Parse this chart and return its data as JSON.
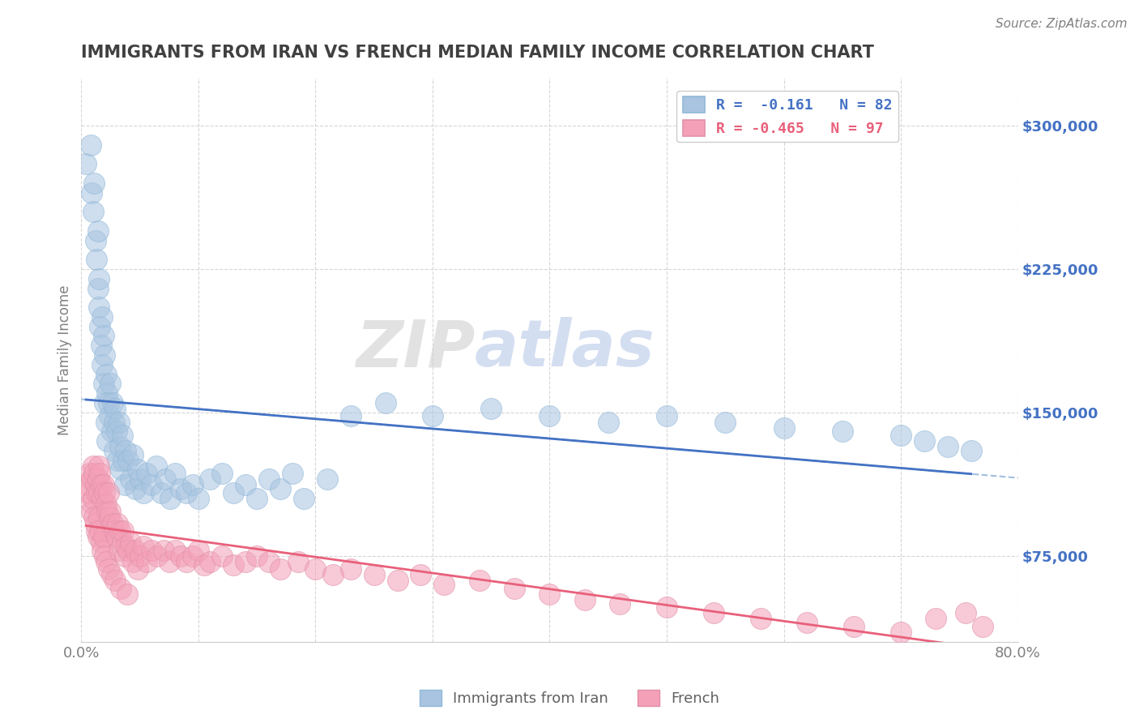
{
  "title": "IMMIGRANTS FROM IRAN VS FRENCH MEDIAN FAMILY INCOME CORRELATION CHART",
  "source": "Source: ZipAtlas.com",
  "ylabel": "Median Family Income",
  "xlim": [
    0.0,
    0.8
  ],
  "ylim": [
    30000,
    320000
  ],
  "yticks": [
    75000,
    150000,
    225000,
    300000
  ],
  "ytick_labels": [
    "$75,000",
    "$150,000",
    "$225,000",
    "$300,000"
  ],
  "xticks": [
    0.0,
    0.1,
    0.2,
    0.3,
    0.4,
    0.5,
    0.6,
    0.7,
    0.8
  ],
  "xtick_labels": [
    "0.0%",
    "",
    "",
    "",
    "",
    "",
    "",
    "",
    "80.0%"
  ],
  "iran_color": "#a8c4e0",
  "french_color": "#f4a0b8",
  "iran_line_color": "#4472c4",
  "french_line_color": "#e8607a",
  "dash_line_color": "#8ab0d8",
  "iran_R": -0.161,
  "iran_N": 82,
  "french_R": -0.465,
  "french_N": 97,
  "iran_x": [
    0.004,
    0.008,
    0.009,
    0.01,
    0.011,
    0.012,
    0.013,
    0.014,
    0.014,
    0.015,
    0.015,
    0.016,
    0.017,
    0.018,
    0.018,
    0.019,
    0.019,
    0.02,
    0.02,
    0.021,
    0.021,
    0.022,
    0.022,
    0.023,
    0.024,
    0.025,
    0.026,
    0.027,
    0.028,
    0.028,
    0.029,
    0.03,
    0.031,
    0.032,
    0.033,
    0.034,
    0.035,
    0.036,
    0.037,
    0.038,
    0.04,
    0.042,
    0.044,
    0.046,
    0.048,
    0.05,
    0.053,
    0.056,
    0.06,
    0.064,
    0.068,
    0.072,
    0.076,
    0.08,
    0.085,
    0.09,
    0.095,
    0.1,
    0.11,
    0.12,
    0.13,
    0.14,
    0.15,
    0.16,
    0.17,
    0.18,
    0.19,
    0.21,
    0.23,
    0.26,
    0.3,
    0.35,
    0.4,
    0.45,
    0.5,
    0.55,
    0.6,
    0.65,
    0.7,
    0.72,
    0.74,
    0.76
  ],
  "iran_y": [
    280000,
    290000,
    265000,
    255000,
    270000,
    240000,
    230000,
    245000,
    215000,
    205000,
    220000,
    195000,
    185000,
    200000,
    175000,
    190000,
    165000,
    180000,
    155000,
    170000,
    145000,
    160000,
    135000,
    155000,
    148000,
    165000,
    140000,
    155000,
    145000,
    130000,
    152000,
    140000,
    125000,
    145000,
    132000,
    120000,
    138000,
    125000,
    112000,
    130000,
    125000,
    115000,
    128000,
    110000,
    120000,
    115000,
    108000,
    118000,
    112000,
    122000,
    108000,
    115000,
    105000,
    118000,
    110000,
    108000,
    112000,
    105000,
    115000,
    118000,
    108000,
    112000,
    105000,
    115000,
    110000,
    118000,
    105000,
    115000,
    148000,
    155000,
    148000,
    152000,
    148000,
    145000,
    148000,
    145000,
    142000,
    140000,
    138000,
    135000,
    132000,
    130000
  ],
  "french_x": [
    0.004,
    0.006,
    0.007,
    0.008,
    0.009,
    0.009,
    0.01,
    0.01,
    0.011,
    0.011,
    0.012,
    0.012,
    0.013,
    0.013,
    0.014,
    0.014,
    0.015,
    0.015,
    0.015,
    0.016,
    0.016,
    0.017,
    0.017,
    0.018,
    0.018,
    0.019,
    0.019,
    0.02,
    0.02,
    0.021,
    0.021,
    0.022,
    0.023,
    0.023,
    0.024,
    0.025,
    0.026,
    0.027,
    0.028,
    0.029,
    0.03,
    0.031,
    0.032,
    0.033,
    0.034,
    0.035,
    0.036,
    0.037,
    0.038,
    0.039,
    0.04,
    0.042,
    0.044,
    0.046,
    0.048,
    0.05,
    0.053,
    0.056,
    0.06,
    0.065,
    0.07,
    0.075,
    0.08,
    0.085,
    0.09,
    0.095,
    0.1,
    0.105,
    0.11,
    0.12,
    0.13,
    0.14,
    0.15,
    0.16,
    0.17,
    0.185,
    0.2,
    0.215,
    0.23,
    0.25,
    0.27,
    0.29,
    0.31,
    0.34,
    0.37,
    0.4,
    0.43,
    0.46,
    0.5,
    0.54,
    0.58,
    0.62,
    0.66,
    0.7,
    0.73,
    0.755,
    0.77
  ],
  "french_y": [
    112000,
    108000,
    118000,
    103000,
    115000,
    98000,
    122000,
    105000,
    118000,
    95000,
    112000,
    92000,
    108000,
    88000,
    115000,
    85000,
    122000,
    108000,
    95000,
    118000,
    88000,
    112000,
    82000,
    105000,
    78000,
    112000,
    85000,
    108000,
    75000,
    102000,
    72000,
    98000,
    108000,
    68000,
    95000,
    98000,
    65000,
    92000,
    88000,
    62000,
    85000,
    92000,
    78000,
    88000,
    58000,
    82000,
    88000,
    75000,
    80000,
    55000,
    78000,
    82000,
    72000,
    78000,
    68000,
    75000,
    80000,
    72000,
    78000,
    75000,
    78000,
    72000,
    78000,
    75000,
    72000,
    75000,
    78000,
    70000,
    72000,
    75000,
    70000,
    72000,
    75000,
    72000,
    68000,
    72000,
    68000,
    65000,
    68000,
    65000,
    62000,
    65000,
    60000,
    62000,
    58000,
    55000,
    52000,
    50000,
    48000,
    45000,
    42000,
    40000,
    38000,
    35000,
    42000,
    45000,
    38000
  ],
  "watermark_zip": "ZIP",
  "watermark_atlas": "atlas",
  "title_color": "#404040",
  "axis_label_color": "#808080",
  "tick_label_color": "#4472c4",
  "background_color": "#ffffff"
}
